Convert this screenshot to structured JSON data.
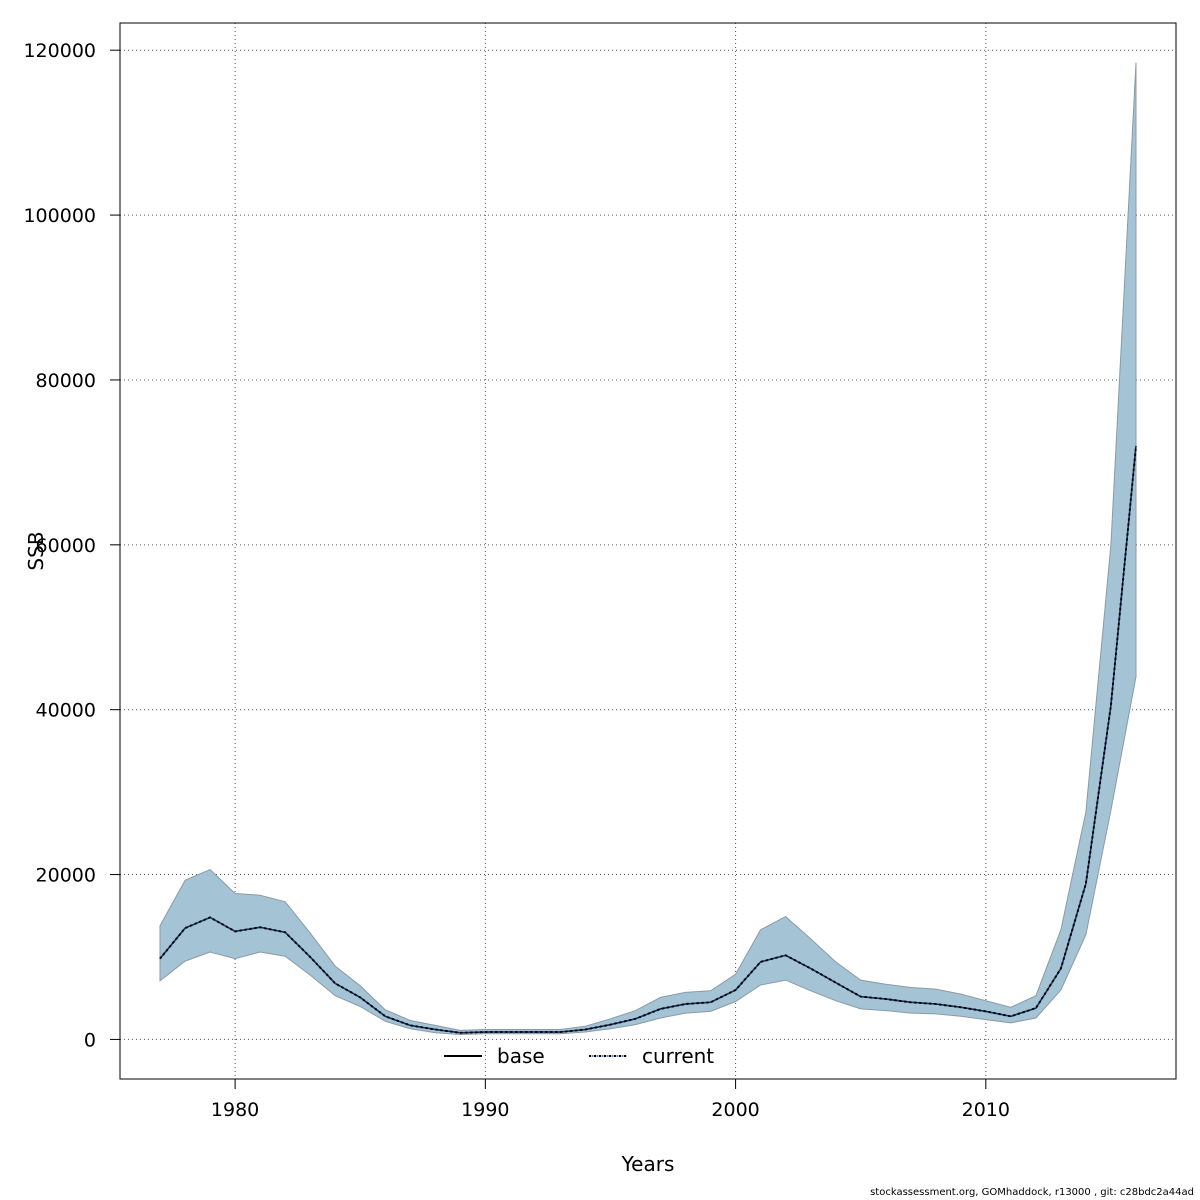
{
  "chart_data": {
    "type": "area",
    "title": "",
    "xlabel": "Years",
    "ylabel": "SSB",
    "xlim": [
      1975.4,
      2017.6
    ],
    "ylim": [
      -4800,
      123300
    ],
    "xticks": [
      1980,
      1990,
      2000,
      2010
    ],
    "yticks": [
      0,
      20000,
      40000,
      60000,
      80000,
      100000,
      120000
    ],
    "grid": true,
    "legend_position": "bottom-center",
    "x": [
      1977,
      1978,
      1979,
      1980,
      1981,
      1982,
      1983,
      1984,
      1985,
      1986,
      1987,
      1988,
      1989,
      1990,
      1991,
      1992,
      1993,
      1994,
      1995,
      1996,
      1997,
      1998,
      1999,
      2000,
      2001,
      2002,
      2003,
      2004,
      2005,
      2006,
      2007,
      2008,
      2009,
      2010,
      2011,
      2012,
      2013,
      2014,
      2015,
      2016
    ],
    "band": {
      "color": "#a4c4d6",
      "edge_color": "#8a9aa6",
      "upper": [
        13800,
        19300,
        20600,
        17700,
        17500,
        16700,
        12900,
        8900,
        6500,
        3600,
        2300,
        1700,
        1100,
        1200,
        1200,
        1200,
        1200,
        1600,
        2500,
        3500,
        5100,
        5700,
        5900,
        7900,
        13300,
        14900,
        12200,
        9400,
        7200,
        6700,
        6300,
        6100,
        5500,
        4700,
        3900,
        5300,
        13300,
        27600,
        60000,
        118500
      ],
      "lower": [
        7100,
        9500,
        10600,
        9800,
        10600,
        10100,
        7800,
        5300,
        4000,
        2200,
        1300,
        800,
        600,
        700,
        700,
        700,
        700,
        900,
        1300,
        1800,
        2600,
        3200,
        3400,
        4600,
        6600,
        7200,
        5900,
        4700,
        3700,
        3500,
        3200,
        3100,
        2800,
        2400,
        2000,
        2600,
        6000,
        12700,
        27800,
        44000
      ]
    },
    "series": [
      {
        "name": "base",
        "color": "#000000",
        "dash": "solid",
        "values": [
          9800,
          13500,
          14800,
          13100,
          13600,
          13000,
          10000,
          6800,
          5100,
          2800,
          1700,
          1200,
          800,
          900,
          900,
          900,
          900,
          1200,
          1800,
          2500,
          3700,
          4300,
          4500,
          6000,
          9400,
          10200,
          8600,
          6900,
          5200,
          4900,
          4500,
          4300,
          3900,
          3400,
          2800,
          3800,
          8600,
          18900,
          40500,
          72000
        ]
      },
      {
        "name": "current",
        "color": "#0b3d91",
        "dash": "dotted",
        "values": [
          9800,
          13500,
          14800,
          13100,
          13600,
          13000,
          10000,
          6800,
          5100,
          2800,
          1700,
          1200,
          800,
          900,
          900,
          900,
          900,
          1200,
          1800,
          2500,
          3700,
          4300,
          4500,
          6000,
          9400,
          10200,
          8600,
          6900,
          5200,
          4900,
          4500,
          4300,
          3900,
          3400,
          2800,
          3800,
          8600,
          18900,
          40500,
          72000
        ]
      }
    ]
  },
  "footer": "stockassessment.org, GOMhaddock, r13000 , git: c28bdc2a44ad"
}
